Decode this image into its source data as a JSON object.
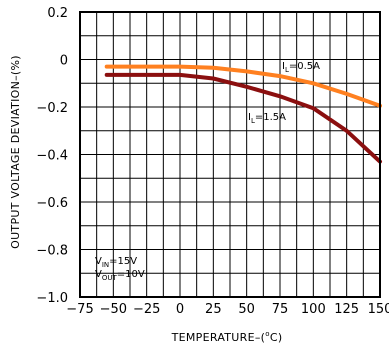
{
  "chart_data": {
    "type": "line",
    "xlabel_main": "TEMPERATURE–(",
    "xlabel_unit": "C)",
    "xlabel_degree": "o",
    "ylabel": "OUTPUT VOLTAGE DEVIATION–(%)",
    "xlim": [
      -75,
      150
    ],
    "ylim": [
      -1.0,
      0.2
    ],
    "x_ticks": [
      -75,
      -50,
      -25,
      0,
      25,
      50,
      75,
      100,
      125,
      150
    ],
    "x_tick_labels": [
      "−75",
      "−50",
      "−25",
      "0",
      "25",
      "50",
      "75",
      "100",
      "125",
      "150"
    ],
    "y_ticks": [
      0.2,
      0,
      -0.2,
      -0.4,
      -0.6,
      -0.8,
      -1.0
    ],
    "y_tick_labels": [
      "0.2",
      "0",
      "−0.2",
      "−0.4",
      "−0.6",
      "−0.8",
      "−1.0"
    ],
    "grid": true,
    "series": [
      {
        "name": "IL=0.5A",
        "color": "#ff8020",
        "x": [
          -55,
          -25,
          0,
          25,
          50,
          75,
          100,
          125,
          150
        ],
        "y": [
          -0.03,
          -0.03,
          -0.03,
          -0.035,
          -0.05,
          -0.07,
          -0.1,
          -0.145,
          -0.195
        ]
      },
      {
        "name": "IL=1.5A",
        "color": "#8b0f0f",
        "x": [
          -55,
          -25,
          0,
          25,
          50,
          75,
          100,
          125,
          150
        ],
        "y": [
          -0.065,
          -0.065,
          -0.065,
          -0.08,
          -0.115,
          -0.155,
          -0.205,
          -0.3,
          -0.43
        ]
      }
    ],
    "annotations": {
      "il_05": {
        "prefix": "I",
        "sub": "L",
        "suffix": "=0.5A"
      },
      "il_15": {
        "prefix": "I",
        "sub": "L",
        "suffix": "=1.5A"
      },
      "vin": {
        "prefix": "V",
        "sub": "IN",
        "suffix": "=15V"
      },
      "vout": {
        "prefix": "V",
        "sub": "OUT",
        "suffix": "=10V"
      }
    }
  }
}
